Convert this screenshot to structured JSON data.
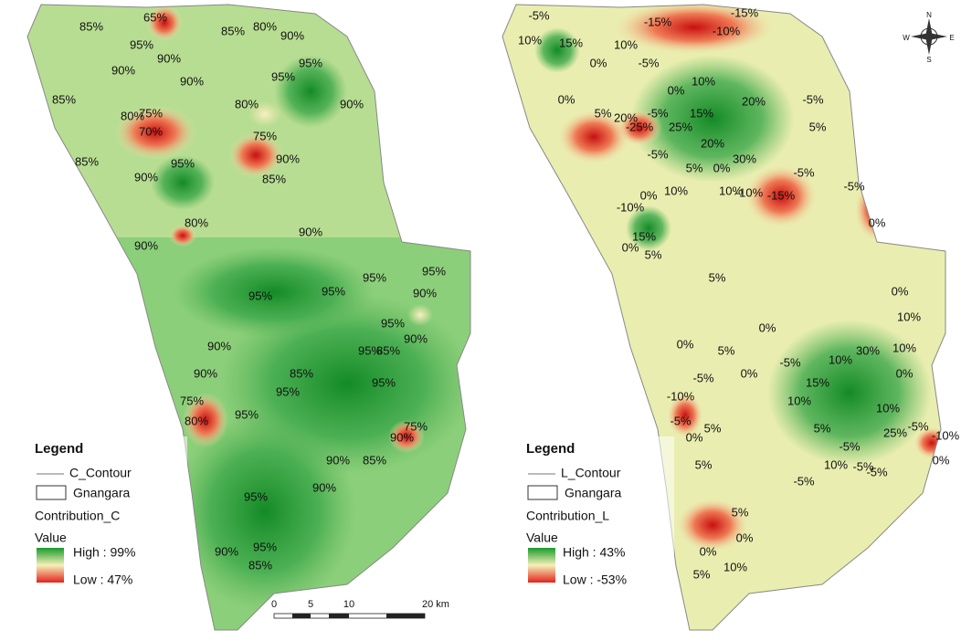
{
  "left_map": {
    "legend": {
      "title": "Legend",
      "contour": "C_Contour",
      "boundary": "Gnangara",
      "field": "Contribution_C",
      "value": "Value",
      "high": "High : 99%",
      "low": "Low : 47%"
    },
    "contour_labels": [
      "85%",
      "65%",
      "85%",
      "80%",
      "90%",
      "95%",
      "90%",
      "90%",
      "90%",
      "95%",
      "95%",
      "90%",
      "85%",
      "75%",
      "80%",
      "70%",
      "80%",
      "75%",
      "90%",
      "85%",
      "95%",
      "90%",
      "85%",
      "80%",
      "90%",
      "90%",
      "95%",
      "95%",
      "95%",
      "95%",
      "90%",
      "95%",
      "90%",
      "85%",
      "95%",
      "90%",
      "90%",
      "75%",
      "80%",
      "95%",
      "95%",
      "85%",
      "95%",
      "75%",
      "90%",
      "90%",
      "85%",
      "90%",
      "95%",
      "95%",
      "90%",
      "85%"
    ]
  },
  "right_map": {
    "legend": {
      "title": "Legend",
      "contour": "L_Contour",
      "boundary": "Gnangara",
      "field": "Contribution_L",
      "value": "Value",
      "high": "High : 43%",
      "low": "Low : -53%"
    },
    "contour_labels": [
      "-5%",
      "10%",
      "15%",
      "-15%",
      "-15%",
      "-10%",
      "10%",
      "-5%",
      "0%",
      "0%",
      "10%",
      "0%",
      "20%",
      "15%",
      "5%",
      "20%",
      "-25%",
      "-5%",
      "25%",
      "20%",
      "30%",
      "-5%",
      "0%",
      "5%",
      "10%",
      "10%",
      "-10%",
      "-15%",
      "-5%",
      "5%",
      "-5%",
      "-5%",
      "0%",
      "0%",
      "-10%",
      "15%",
      "0%",
      "5%",
      "5%",
      "0%",
      "10%",
      "0%",
      "0%",
      "5%",
      "-5%",
      "0%",
      "-5%",
      "10%",
      "30%",
      "10%",
      "15%",
      "10%",
      "0%",
      "-10%",
      "-5%",
      "0%",
      "5%",
      "10%",
      "5%",
      "25%",
      "-5%",
      "-10%",
      "0%",
      "-5%",
      "10%",
      "-5%",
      "-5%",
      "5%",
      "-5%",
      "5%",
      "0%",
      "0%",
      "10%",
      "5%"
    ]
  },
  "scale_bar": {
    "ticks": [
      "0",
      "5",
      "10",
      "20 km"
    ]
  },
  "compass": {
    "n": "N",
    "s": "S",
    "e": "E",
    "w": "W"
  }
}
